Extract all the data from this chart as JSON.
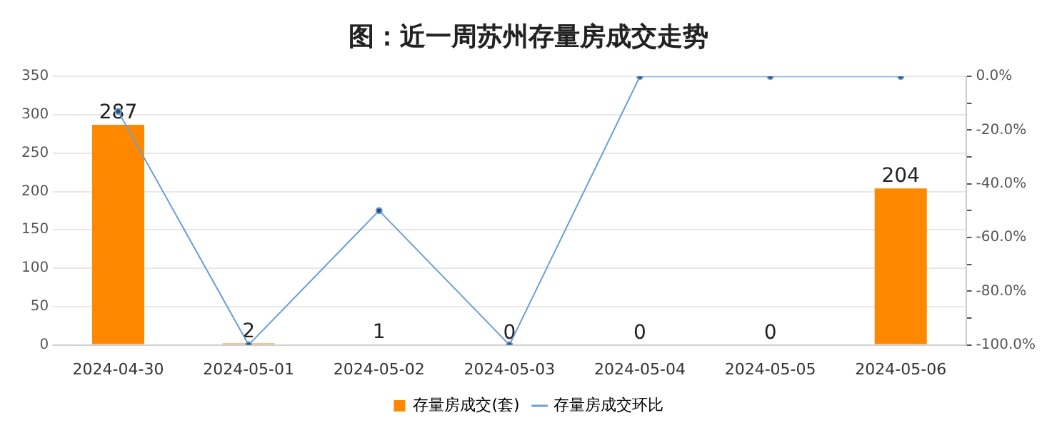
{
  "chart_data": {
    "type": "bar",
    "title": "图：近一周苏州存量房成交走势",
    "categories": [
      "2024-04-30",
      "2024-05-01",
      "2024-05-02",
      "2024-05-03",
      "2024-05-04",
      "2024-05-05",
      "2024-05-06"
    ],
    "series": [
      {
        "name": "存量房成交(套)",
        "color": "#ff8800",
        "values": [
          287,
          2,
          1,
          0,
          0,
          0,
          204
        ],
        "value_labels": [
          "287",
          "2",
          "1",
          "0",
          "0",
          "0",
          "204"
        ]
      },
      {
        "name": "存量房成交环比",
        "type": "line",
        "axis": "y2",
        "color": "#6a9fd8",
        "marker": "circle",
        "values": [
          -13,
          -100,
          -50,
          -100,
          0,
          0,
          0
        ]
      }
    ],
    "ylim": [
      0,
      350
    ],
    "yticks": [
      0,
      50,
      100,
      150,
      200,
      250,
      300,
      350
    ],
    "y2lim": [
      -100,
      0
    ],
    "y2ticks": [
      {
        "value": 0,
        "label": "0.0%"
      },
      {
        "value": -10,
        "label": null
      },
      {
        "value": -20,
        "label": "-20.0%"
      },
      {
        "value": -30,
        "label": null
      },
      {
        "value": -40,
        "label": "-40.0%"
      },
      {
        "value": -50,
        "label": null
      },
      {
        "value": -60,
        "label": "-60.0%"
      },
      {
        "value": -70,
        "label": null
      },
      {
        "value": -80,
        "label": "-80.0%"
      },
      {
        "value": -90,
        "label": null
      },
      {
        "value": -100,
        "label": "-100.0%"
      }
    ],
    "grid": "y",
    "legend": "bottom"
  }
}
